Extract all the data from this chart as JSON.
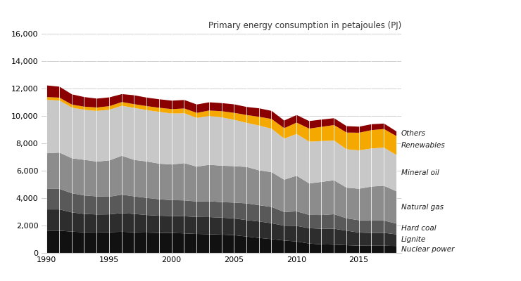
{
  "title": "Primary energy consumption in petajoules (PJ)",
  "years": [
    1990,
    1991,
    1992,
    1993,
    1994,
    1995,
    1996,
    1997,
    1998,
    1999,
    2000,
    2001,
    2002,
    2003,
    2004,
    2005,
    2006,
    2007,
    2008,
    2009,
    2010,
    2011,
    2012,
    2013,
    2014,
    2015,
    2016,
    2017,
    2018
  ],
  "nuclear_power": [
    1650,
    1650,
    1580,
    1530,
    1520,
    1540,
    1570,
    1530,
    1510,
    1490,
    1480,
    1450,
    1410,
    1390,
    1360,
    1320,
    1220,
    1120,
    1030,
    930,
    860,
    710,
    650,
    630,
    590,
    550,
    550,
    550,
    530
  ],
  "lignite": [
    1550,
    1550,
    1400,
    1340,
    1310,
    1300,
    1360,
    1340,
    1280,
    1250,
    1240,
    1250,
    1240,
    1250,
    1240,
    1220,
    1200,
    1200,
    1160,
    1080,
    1140,
    1120,
    1140,
    1160,
    1060,
    960,
    940,
    940,
    850
  ],
  "hard_coal": [
    1500,
    1500,
    1400,
    1350,
    1320,
    1290,
    1350,
    1280,
    1250,
    1200,
    1160,
    1160,
    1130,
    1160,
    1130,
    1160,
    1220,
    1190,
    1190,
    1000,
    1060,
    970,
    1000,
    1060,
    900,
    900,
    900,
    900,
    780
  ],
  "natural_gas": [
    2600,
    2650,
    2550,
    2600,
    2540,
    2650,
    2840,
    2660,
    2660,
    2600,
    2600,
    2720,
    2540,
    2660,
    2660,
    2660,
    2660,
    2540,
    2540,
    2360,
    2600,
    2300,
    2420,
    2480,
    2240,
    2300,
    2480,
    2540,
    2360
  ],
  "mineral_oil": [
    3900,
    3800,
    3700,
    3650,
    3700,
    3700,
    3650,
    3800,
    3750,
    3780,
    3720,
    3640,
    3560,
    3560,
    3530,
    3380,
    3220,
    3270,
    3170,
    3000,
    3050,
    3050,
    2980,
    2900,
    2800,
    2800,
    2780,
    2780,
    2650
  ],
  "renewables": [
    200,
    210,
    220,
    230,
    250,
    260,
    270,
    270,
    290,
    300,
    320,
    350,
    370,
    400,
    450,
    510,
    570,
    640,
    710,
    760,
    830,
    950,
    1040,
    1130,
    1220,
    1290,
    1340,
    1360,
    1380
  ],
  "others": [
    850,
    800,
    750,
    700,
    650,
    640,
    580,
    650,
    620,
    620,
    620,
    620,
    610,
    600,
    590,
    620,
    590,
    620,
    590,
    560,
    550,
    550,
    530,
    500,
    470,
    440,
    430,
    400,
    340
  ],
  "colors": {
    "nuclear_power": "#111111",
    "lignite": "#2d2d2d",
    "hard_coal": "#595959",
    "natural_gas": "#8c8c8c",
    "mineral_oil": "#c8c8c8",
    "renewables": "#f5a800",
    "others": "#8b0000"
  },
  "labels": {
    "nuclear_power": "Nuclear power",
    "lignite": "Lignite",
    "hard_coal": "Hard coal",
    "natural_gas": "Natural gas",
    "mineral_oil": "Mineral oil",
    "renewables": "Renewables",
    "others": "Others"
  },
  "ylim": [
    0,
    16000
  ],
  "yticks": [
    0,
    2000,
    4000,
    6000,
    8000,
    10000,
    12000,
    14000,
    16000
  ],
  "background_color": "#ffffff",
  "grid_color": "#d0d0d0"
}
